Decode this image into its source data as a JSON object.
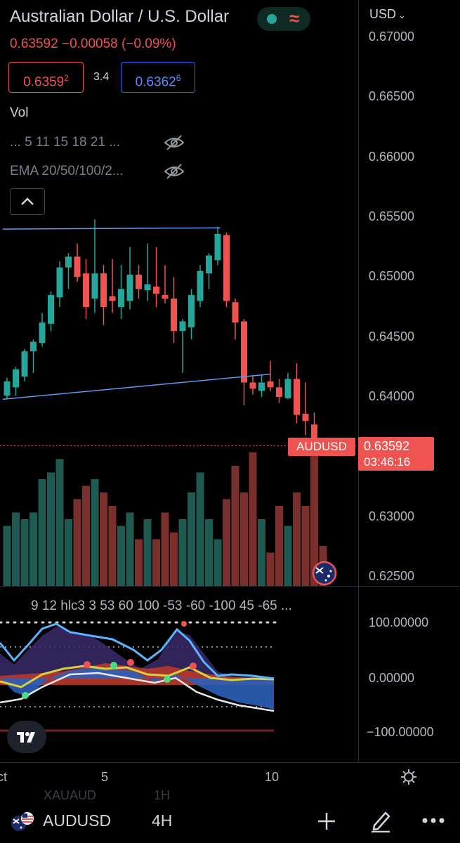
{
  "header": {
    "title": "Australian Dollar / U.S. Dollar",
    "currency": "USD",
    "last_price": "0.63592",
    "change": "−0.00058",
    "change_pct": "(−0.09%)",
    "bid_main": "0.6359",
    "bid_sup": "2",
    "spread": "3.4",
    "ask_main": "0.6362",
    "ask_sup": "6",
    "colors": {
      "up": "#26a69a",
      "down": "#ef5350",
      "accent": "#2962ff"
    }
  },
  "indicators": {
    "vol": "Vol",
    "row1": "... 5 11 15 18 21 ...",
    "row2": "EMA 20/50/100/2...",
    "hide_icon": "eye-off-icon",
    "collapse_icon": "chevron-up-icon"
  },
  "price_axis": [
    "0.67000",
    "0.66500",
    "0.66000",
    "0.65500",
    "0.65000",
    "0.64500",
    "0.64000",
    "0.63000",
    "0.62500"
  ],
  "symbol_tag": "AUDUSD",
  "price_tag": "0.63592",
  "countdown": "03:46:16",
  "oscillator": {
    "params": "9 12 hlc3 3 53 60 100 -53 -60 -100 45 -65 ...",
    "axis": [
      "100.00000",
      "0.00000",
      "−100.00000"
    ]
  },
  "time_axis": {
    "left_partial": "ct",
    "labels": [
      "5",
      "10"
    ]
  },
  "bottom": {
    "symbol": "AUDUSD",
    "timeframe": "4H",
    "ghost_top": "XAUAUD",
    "ghost_top_tf": "1H",
    "add_icon": "plus-icon",
    "draw_icon": "pencil-icon",
    "more_icon": "more-dots-icon"
  },
  "chart_data": {
    "type": "candlestick",
    "ylim": [
      0.6245,
      0.671
    ],
    "candles": [
      {
        "o": 0.6401,
        "h": 0.6416,
        "l": 0.6398,
        "c": 0.6413
      },
      {
        "o": 0.6408,
        "h": 0.6425,
        "l": 0.6401,
        "c": 0.6423
      },
      {
        "o": 0.6417,
        "h": 0.644,
        "l": 0.6413,
        "c": 0.6438
      },
      {
        "o": 0.6438,
        "h": 0.6448,
        "l": 0.642,
        "c": 0.6446
      },
      {
        "o": 0.6445,
        "h": 0.647,
        "l": 0.6442,
        "c": 0.6462
      },
      {
        "o": 0.6461,
        "h": 0.6488,
        "l": 0.6455,
        "c": 0.6485
      },
      {
        "o": 0.6483,
        "h": 0.6513,
        "l": 0.6475,
        "c": 0.6508
      },
      {
        "o": 0.6508,
        "h": 0.652,
        "l": 0.649,
        "c": 0.6517
      },
      {
        "o": 0.6517,
        "h": 0.6528,
        "l": 0.6496,
        "c": 0.65
      },
      {
        "o": 0.6503,
        "h": 0.6515,
        "l": 0.6465,
        "c": 0.6475
      },
      {
        "o": 0.6482,
        "h": 0.6548,
        "l": 0.647,
        "c": 0.6503
      },
      {
        "o": 0.6503,
        "h": 0.651,
        "l": 0.646,
        "c": 0.6475
      },
      {
        "o": 0.6484,
        "h": 0.6515,
        "l": 0.647,
        "c": 0.648
      },
      {
        "o": 0.6475,
        "h": 0.651,
        "l": 0.6465,
        "c": 0.649
      },
      {
        "o": 0.648,
        "h": 0.6525,
        "l": 0.6473,
        "c": 0.6502
      },
      {
        "o": 0.6502,
        "h": 0.651,
        "l": 0.6482,
        "c": 0.649
      },
      {
        "o": 0.6489,
        "h": 0.6528,
        "l": 0.648,
        "c": 0.6494
      },
      {
        "o": 0.6492,
        "h": 0.6525,
        "l": 0.6475,
        "c": 0.6486
      },
      {
        "o": 0.6485,
        "h": 0.651,
        "l": 0.6478,
        "c": 0.6482
      },
      {
        "o": 0.6482,
        "h": 0.65,
        "l": 0.6445,
        "c": 0.6455
      },
      {
        "o": 0.6455,
        "h": 0.6465,
        "l": 0.642,
        "c": 0.6463
      },
      {
        "o": 0.6458,
        "h": 0.649,
        "l": 0.6448,
        "c": 0.6485
      },
      {
        "o": 0.648,
        "h": 0.651,
        "l": 0.6475,
        "c": 0.6505
      },
      {
        "o": 0.6503,
        "h": 0.652,
        "l": 0.649,
        "c": 0.6518
      },
      {
        "o": 0.6514,
        "h": 0.6542,
        "l": 0.651,
        "c": 0.6536
      },
      {
        "o": 0.6535,
        "h": 0.6537,
        "l": 0.6475,
        "c": 0.648
      },
      {
        "o": 0.6479,
        "h": 0.6482,
        "l": 0.6448,
        "c": 0.6462
      },
      {
        "o": 0.6463,
        "h": 0.6465,
        "l": 0.6393,
        "c": 0.6412
      },
      {
        "o": 0.6412,
        "h": 0.6418,
        "l": 0.6402,
        "c": 0.6407
      },
      {
        "o": 0.6405,
        "h": 0.6418,
        "l": 0.64,
        "c": 0.6412
      },
      {
        "o": 0.6413,
        "h": 0.643,
        "l": 0.6405,
        "c": 0.6408
      },
      {
        "o": 0.6408,
        "h": 0.6415,
        "l": 0.6395,
        "c": 0.64
      },
      {
        "o": 0.6399,
        "h": 0.642,
        "l": 0.6398,
        "c": 0.6415
      },
      {
        "o": 0.6415,
        "h": 0.6428,
        "l": 0.6378,
        "c": 0.6385
      },
      {
        "o": 0.6386,
        "h": 0.6412,
        "l": 0.6368,
        "c": 0.638
      },
      {
        "o": 0.6377,
        "h": 0.6387,
        "l": 0.635,
        "c": 0.636
      },
      {
        "o": 0.6361,
        "h": 0.6365,
        "l": 0.6355,
        "c": 0.63592
      }
    ],
    "volume_relative": [
      0.45,
      0.55,
      0.5,
      0.55,
      0.8,
      0.85,
      0.95,
      0.5,
      0.65,
      0.75,
      0.8,
      0.7,
      0.6,
      0.45,
      0.55,
      0.35,
      0.5,
      0.35,
      0.55,
      0.4,
      0.5,
      0.7,
      0.85,
      0.5,
      0.35,
      0.65,
      0.9,
      0.7,
      1.0,
      0.5,
      0.25,
      0.6,
      0.45,
      0.7,
      0.6,
      1.1,
      0.3
    ],
    "trendlines": [
      {
        "from": {
          "i": -0.5,
          "p": 0.654
        },
        "to": {
          "i": 24.3,
          "p": 0.6541
        }
      },
      {
        "from": {
          "i": -0.5,
          "p": 0.6398
        },
        "to": {
          "i": 30.0,
          "p": 0.6419
        }
      }
    ]
  }
}
